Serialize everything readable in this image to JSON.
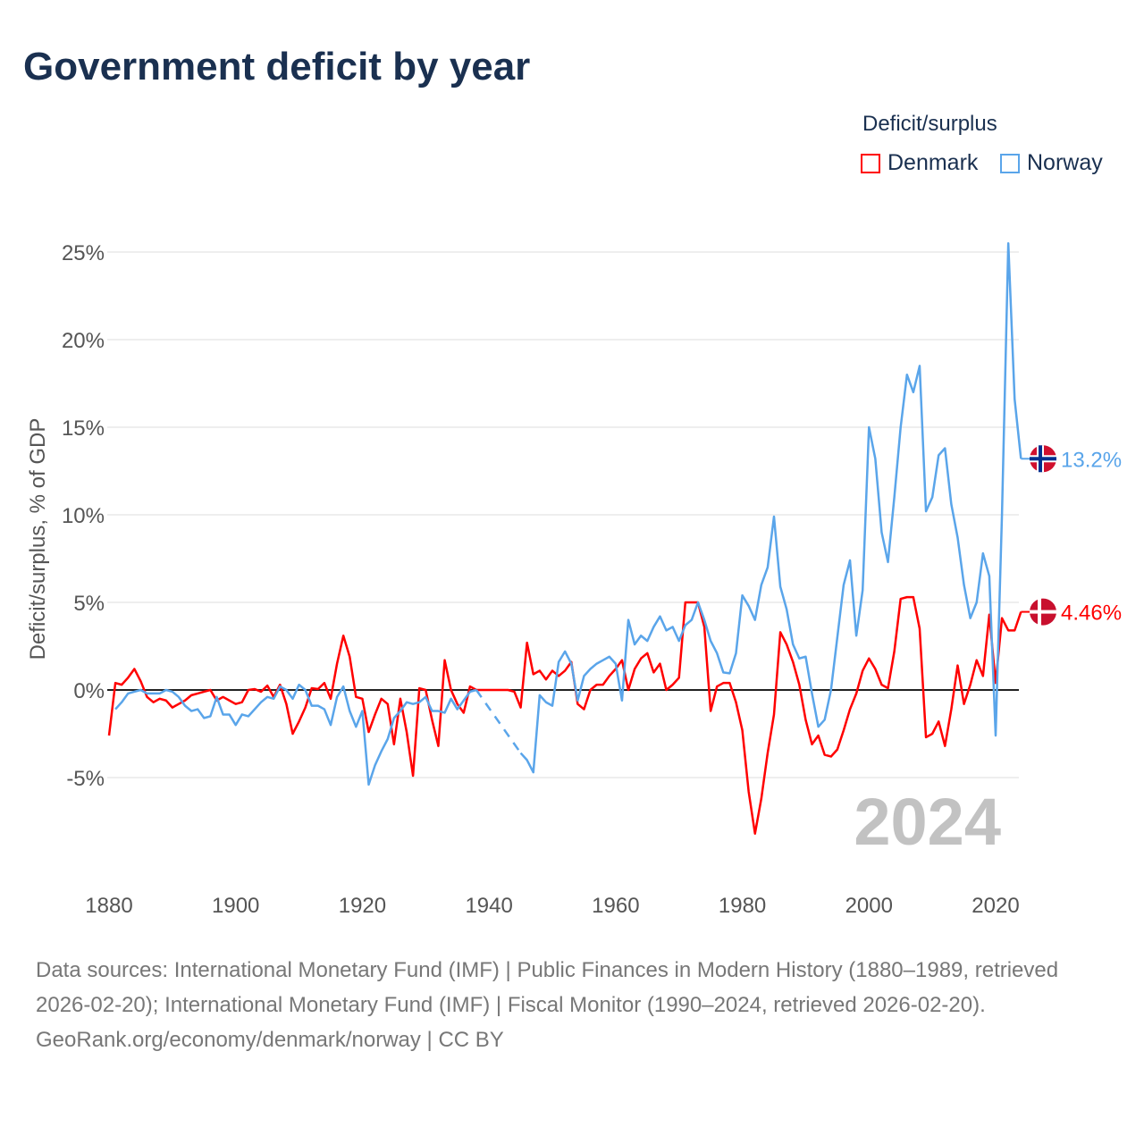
{
  "title": "Government deficit by year",
  "legend": {
    "title": "Deficit/surplus",
    "items": [
      {
        "name": "Denmark",
        "color": "#ff0000"
      },
      {
        "name": "Norway",
        "color": "#5aa5ea"
      }
    ]
  },
  "watermark_year": "2024",
  "end_labels": {
    "Denmark": "4.46%",
    "Norway": "13.2%"
  },
  "footer": {
    "sources": "Data sources: International Monetary Fund (IMF) | Public Finances in Modern History (1880–1989, retrieved 2026-02-20); International Monetary Fund (IMF) | Fiscal Monitor (1990–2024, retrieved 2026-02-20).",
    "credit": "GeoRank.org/economy/denmark/norway | CC BY"
  },
  "chart_data": {
    "type": "line",
    "title": "Government deficit by year",
    "xlabel": "",
    "ylabel": "Deficit/surplus, % of GDP",
    "xlim": [
      1880,
      2024
    ],
    "ylim": [
      -10,
      26
    ],
    "xticks": [
      1880,
      1900,
      1920,
      1940,
      1960,
      1980,
      2000,
      2020
    ],
    "yticks": [
      {
        "v": 25,
        "label": "25%"
      },
      {
        "v": 20,
        "label": "20%"
      },
      {
        "v": 15,
        "label": "15%"
      },
      {
        "v": 10,
        "label": "10%"
      },
      {
        "v": 5,
        "label": "5%"
      },
      {
        "v": 0,
        "label": "0%"
      },
      {
        "v": -5,
        "label": "-5%"
      }
    ],
    "legend_position": "top-right",
    "start_year": 1880,
    "series": [
      {
        "name": "Denmark",
        "color": "#ff0000",
        "values": [
          -2.6,
          0.4,
          0.3,
          0.7,
          1.2,
          0.5,
          -0.4,
          -0.7,
          -0.5,
          -0.6,
          -1.0,
          -0.8,
          -0.6,
          -0.3,
          -0.2,
          -0.1,
          0,
          -0.6,
          -0.4,
          -0.6,
          -0.8,
          -0.7,
          0,
          0.05,
          -0.1,
          0.25,
          -0.4,
          0.3,
          -0.8,
          -2.5,
          -1.8,
          -1.0,
          0.1,
          0.05,
          0.4,
          -0.5,
          1.5,
          3.1,
          1.9,
          -0.4,
          -0.5,
          -2.4,
          -1.4,
          -0.5,
          -0.8,
          -3.1,
          -0.5,
          -2.4,
          -4.9,
          0.1,
          0,
          -1.7,
          -3.2,
          1.7,
          0,
          -0.8,
          -1.3,
          0.2,
          0,
          0,
          0,
          0,
          0,
          0,
          -0.1,
          -1.0,
          2.7,
          0.9,
          1.1,
          0.6,
          1.1,
          0.8,
          1.1,
          1.6,
          -0.8,
          -1.1,
          0,
          0.3,
          0.3,
          0.8,
          1.2,
          1.7,
          0,
          1.2,
          1.8,
          2.1,
          1.0,
          1.5,
          0,
          0.3,
          0.7,
          5.0,
          5.0,
          5.0,
          3.6,
          -1.2,
          0.2,
          0.4,
          0.4,
          -0.7,
          -2.3,
          -5.8,
          -8.2,
          -6.2,
          -3.6,
          -1.4,
          3.3,
          2.6,
          1.6,
          0.3,
          -1.7,
          -3.1,
          -2.6,
          -3.7,
          -3.8,
          -3.4,
          -2.3,
          -1.1,
          -0.2,
          1.1,
          1.8,
          1.2,
          0.3,
          0.1,
          2.2,
          5.2,
          5.3,
          5.3,
          3.5,
          -2.7,
          -2.5,
          -1.8,
          -3.2,
          -1.1,
          1.4,
          -0.8,
          0.3,
          1.7,
          0.8,
          4.3,
          0.4,
          4.1,
          3.4,
          3.4,
          4.46
        ]
      },
      {
        "name": "Norway",
        "color": "#5aa5ea",
        "values": [
          null,
          -1.1,
          -0.7,
          -0.2,
          -0.1,
          0,
          -0.2,
          -0.2,
          -0.2,
          0,
          -0.1,
          -0.4,
          -0.9,
          -1.2,
          -1.1,
          -1.6,
          -1.5,
          -0.4,
          -1.4,
          -1.4,
          -2.0,
          -1.4,
          -1.5,
          -1.1,
          -0.7,
          -0.4,
          -0.5,
          0.2,
          0,
          -0.5,
          0.3,
          0,
          -0.9,
          -0.9,
          -1.1,
          -2.0,
          -0.4,
          0.2,
          -1.2,
          -2.1,
          -1.2,
          -5.4,
          -4.3,
          -3.5,
          -2.8,
          -1.6,
          -1.2,
          -0.7,
          -0.8,
          -0.7,
          -0.4,
          -1.2,
          -1.2,
          -1.3,
          -0.5,
          -1.1,
          -0.6,
          -0.1,
          0,
          null,
          null,
          null,
          null,
          null,
          null,
          -3.6,
          -4.0,
          -4.7,
          -0.3,
          -0.7,
          -0.9,
          1.6,
          2.2,
          1.5,
          -0.6,
          0.8,
          1.2,
          1.5,
          1.7,
          1.9,
          1.5,
          -0.6,
          4.0,
          2.6,
          3.1,
          2.8,
          3.6,
          4.2,
          3.4,
          3.6,
          2.8,
          3.7,
          4.0,
          5.0,
          4.0,
          2.8,
          2.1,
          1.0,
          0.95,
          2.1,
          5.4,
          4.8,
          4.0,
          6.0,
          7.0,
          9.9,
          5.9,
          4.6,
          2.6,
          1.8,
          1.9,
          -0.2,
          -2.1,
          -1.7,
          0,
          3.0,
          6.0,
          7.4,
          3.1,
          5.7,
          15.0,
          13.2,
          9.0,
          7.3,
          11.0,
          15.0,
          18.0,
          17.0,
          18.5,
          10.2,
          11.0,
          13.4,
          13.8,
          10.6,
          8.7,
          6.0,
          4.1,
          5.0,
          7.8,
          6.5,
          -2.6,
          10.0,
          25.5,
          16.6,
          13.2
        ]
      }
    ]
  }
}
